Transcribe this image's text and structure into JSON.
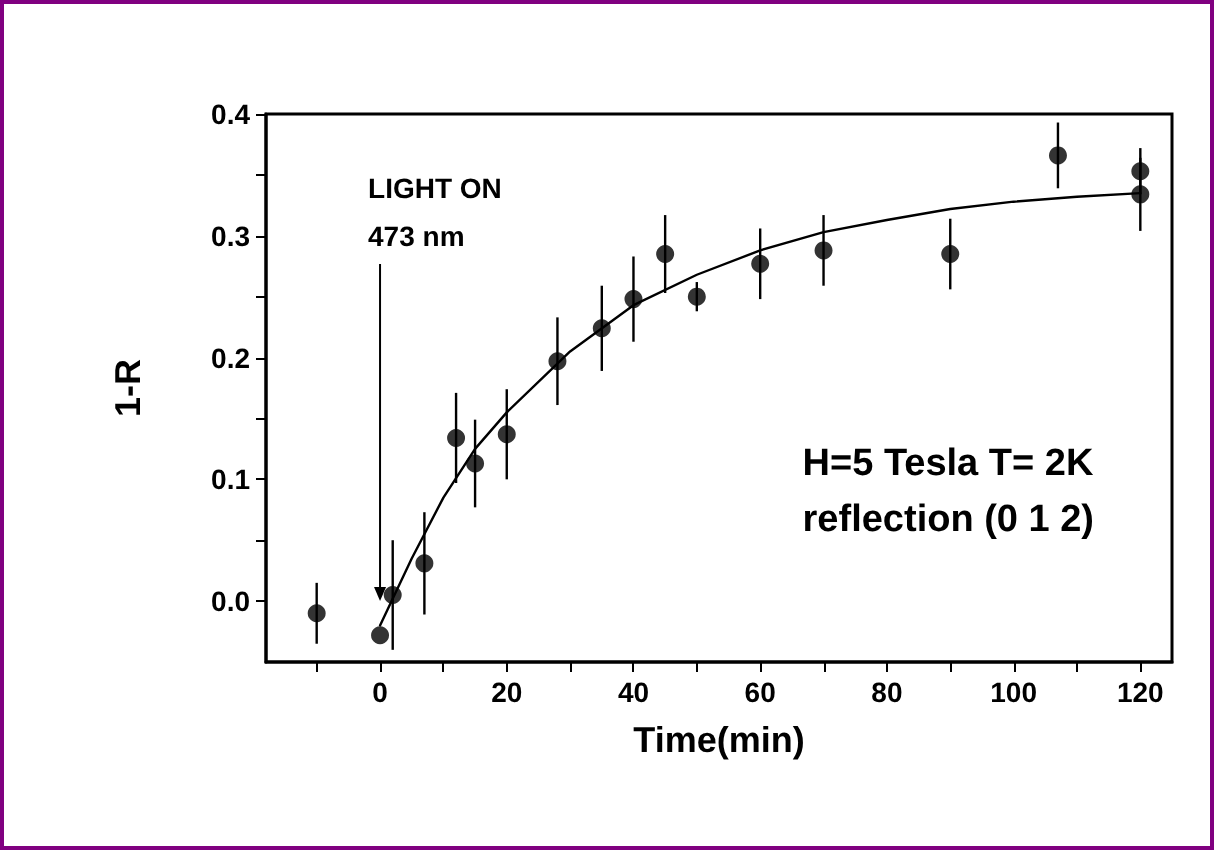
{
  "chart_data": {
    "type": "scatter",
    "xlabel": "Time(min)",
    "ylabel": "1-R",
    "annotations": [
      "H=5 Tesla T= 2K\nreflection (0 1 2)"
    ],
    "ref_lines": [
      {
        "axis": "x",
        "value": 0,
        "label": "LIGHT ON\n473 nm"
      }
    ],
    "xlim": [
      -18,
      125
    ],
    "xticks": [
      {
        "value": -10,
        "label": null
      },
      0,
      {
        "value": 10,
        "label": null
      },
      20,
      {
        "value": 30,
        "label": null
      },
      40,
      {
        "value": 50,
        "label": null
      },
      60,
      {
        "value": 70,
        "label": null
      },
      80,
      {
        "value": 90,
        "label": null
      },
      100,
      {
        "value": 110,
        "label": null
      },
      120
    ],
    "ylim": [
      -0.05,
      0.4
    ],
    "yticks": [
      {
        "value": 0,
        "label": "0.0"
      },
      {
        "value": 0.05,
        "label": null
      },
      0.1,
      {
        "value": 0.15,
        "label": null
      },
      0.2,
      {
        "value": 0.25,
        "label": null
      },
      0.3,
      {
        "value": 0.35,
        "label": null
      },
      0.4
    ],
    "grid": false,
    "series": [
      {
        "color": "#000000",
        "marker": "circle",
        "x": [
          -10,
          0,
          2,
          7,
          12,
          15,
          20,
          28,
          35,
          40,
          45,
          50,
          60,
          70,
          90,
          107,
          120,
          120
        ],
        "values": [
          -0.01,
          -0.028,
          0.005,
          0.031,
          0.134,
          0.113,
          0.137,
          0.197,
          0.224,
          0.248,
          0.285,
          0.25,
          0.277,
          0.288,
          0.285,
          0.366,
          0.353,
          0.334
        ],
        "errors": [
          0.025,
          null,
          0.045,
          0.042,
          0.037,
          0.036,
          0.037,
          0.036,
          0.035,
          0.035,
          0.032,
          0.012,
          0.029,
          0.029,
          0.029,
          0.027,
          0.019,
          0.03
        ]
      },
      {
        "type": "line",
        "color": "#000000",
        "marker": "none",
        "line_style": "solid",
        "x": [
          0,
          5,
          10,
          15,
          20,
          30,
          40,
          50,
          60,
          70,
          80,
          90,
          100,
          110,
          120
        ],
        "values": [
          -0.02,
          0.035,
          0.085,
          0.125,
          0.155,
          0.205,
          0.243,
          0.268,
          0.288,
          0.303,
          0.313,
          0.322,
          0.328,
          0.332,
          0.335
        ]
      }
    ]
  }
}
